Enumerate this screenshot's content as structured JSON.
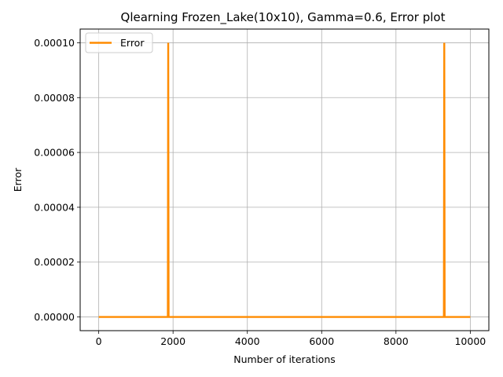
{
  "chart_data": {
    "type": "line",
    "title": "Qlearning Frozen_Lake(10x10),  Gamma=0.6, Error plot",
    "xlabel": "Number of iterations",
    "ylabel": "Error",
    "xlim": [
      -500,
      10500
    ],
    "ylim": [
      -5e-06,
      0.000105
    ],
    "grid": true,
    "legend_position": "top-left",
    "x_ticks": [
      0,
      2000,
      4000,
      6000,
      8000,
      10000
    ],
    "x_tick_labels": [
      "0",
      "2000",
      "4000",
      "6000",
      "8000",
      "10000"
    ],
    "y_ticks": [
      0,
      2e-05,
      4e-05,
      6e-05,
      8e-05,
      0.0001
    ],
    "y_tick_labels": [
      "0.00000",
      "0.00002",
      "0.00004",
      "0.00006",
      "0.00008",
      "0.00010"
    ],
    "series": [
      {
        "name": "Error",
        "color": "#ff8c00",
        "points": [
          [
            0,
            0
          ],
          [
            1860,
            0
          ],
          [
            1870,
            0.0001
          ],
          [
            1880,
            0
          ],
          [
            9290,
            0
          ],
          [
            9300,
            0.0001
          ],
          [
            9310,
            0
          ],
          [
            10000,
            0
          ]
        ]
      }
    ]
  }
}
